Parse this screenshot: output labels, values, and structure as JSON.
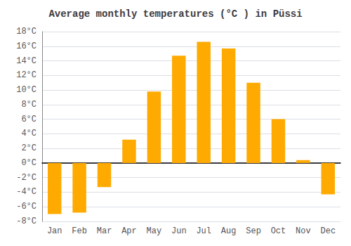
{
  "chart_data": {
    "type": "bar",
    "title": "Average monthly temperatures (°C ) in Püssi",
    "categories": [
      "Jan",
      "Feb",
      "Mar",
      "Apr",
      "May",
      "Jun",
      "Jul",
      "Aug",
      "Sep",
      "Oct",
      "Nov",
      "Dec"
    ],
    "values": [
      -7.0,
      -6.8,
      -3.3,
      3.2,
      9.8,
      14.7,
      16.6,
      15.7,
      11.0,
      6.0,
      0.4,
      -4.3
    ],
    "color": "#FFAA00",
    "ylim": [
      -8,
      18
    ],
    "yticks": [
      {
        "value": -8,
        "label": "-8°C"
      },
      {
        "value": -6,
        "label": "-6°C"
      },
      {
        "value": -4,
        "label": "-4°C"
      },
      {
        "value": -2,
        "label": "-2°C"
      },
      {
        "value": 0,
        "label": "0°C"
      },
      {
        "value": 2,
        "label": "2°C"
      },
      {
        "value": 4,
        "label": "4°C"
      },
      {
        "value": 6,
        "label": "6°C"
      },
      {
        "value": 8,
        "label": "8°C"
      },
      {
        "value": 10,
        "label": "10°C"
      },
      {
        "value": 12,
        "label": "12°C"
      },
      {
        "value": 14,
        "label": "14°C"
      },
      {
        "value": 16,
        "label": "16°C"
      },
      {
        "value": 18,
        "label": "18°C"
      }
    ],
    "grid": true
  }
}
